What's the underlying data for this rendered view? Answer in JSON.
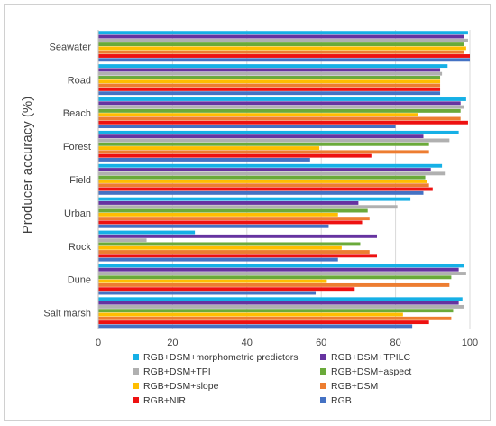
{
  "chart_data": {
    "type": "bar",
    "orientation": "horizontal",
    "title": "",
    "xlabel": "",
    "ylabel": "Producer accuracy (%)",
    "xlim": [
      0,
      100
    ],
    "x_ticks": [
      0,
      20,
      40,
      60,
      80,
      100
    ],
    "grid": true,
    "legend_position": "bottom",
    "categories": [
      "Seawater",
      "Road",
      "Beach",
      "Forest",
      "Field",
      "Urban",
      "Rock",
      "Dune",
      "Salt marsh"
    ],
    "series": [
      {
        "name": "RGB+DSM+morphometric predictors",
        "color": "#16b0e6",
        "values": [
          99.5,
          94,
          99,
          97,
          92.5,
          84,
          26,
          98.5,
          98
        ]
      },
      {
        "name": "RGB+DSM+TPILC",
        "color": "#6633a0",
        "values": [
          98.5,
          92,
          97.5,
          87.5,
          89.5,
          70,
          75,
          97,
          97
        ]
      },
      {
        "name": "RGB+DSM+TPI",
        "color": "#b0b0b0",
        "values": [
          99.5,
          92.5,
          98.5,
          94.5,
          93.5,
          80.5,
          13,
          99,
          98.5
        ]
      },
      {
        "name": "RGB+DSM+aspect",
        "color": "#6aaa3a",
        "values": [
          98.5,
          92,
          97.5,
          89,
          88,
          72.5,
          70.5,
          95,
          95.5
        ]
      },
      {
        "name": "RGB+DSM+slope",
        "color": "#ffbe00",
        "values": [
          99,
          92,
          86,
          59.5,
          88.5,
          64.5,
          65.5,
          61.5,
          82
        ]
      },
      {
        "name": "RGB+DSM",
        "color": "#ed7d31",
        "values": [
          98.5,
          92,
          97.5,
          89,
          89,
          73,
          73,
          94.5,
          95
        ]
      },
      {
        "name": "RGB+NIR",
        "color": "#ee1111",
        "values": [
          100,
          92,
          99.5,
          73.5,
          90,
          71,
          75,
          69,
          89
        ]
      },
      {
        "name": "RGB",
        "color": "#4472c4",
        "values": [
          100,
          92,
          80,
          57,
          87.5,
          62,
          64.5,
          58.5,
          84.5
        ]
      }
    ]
  }
}
